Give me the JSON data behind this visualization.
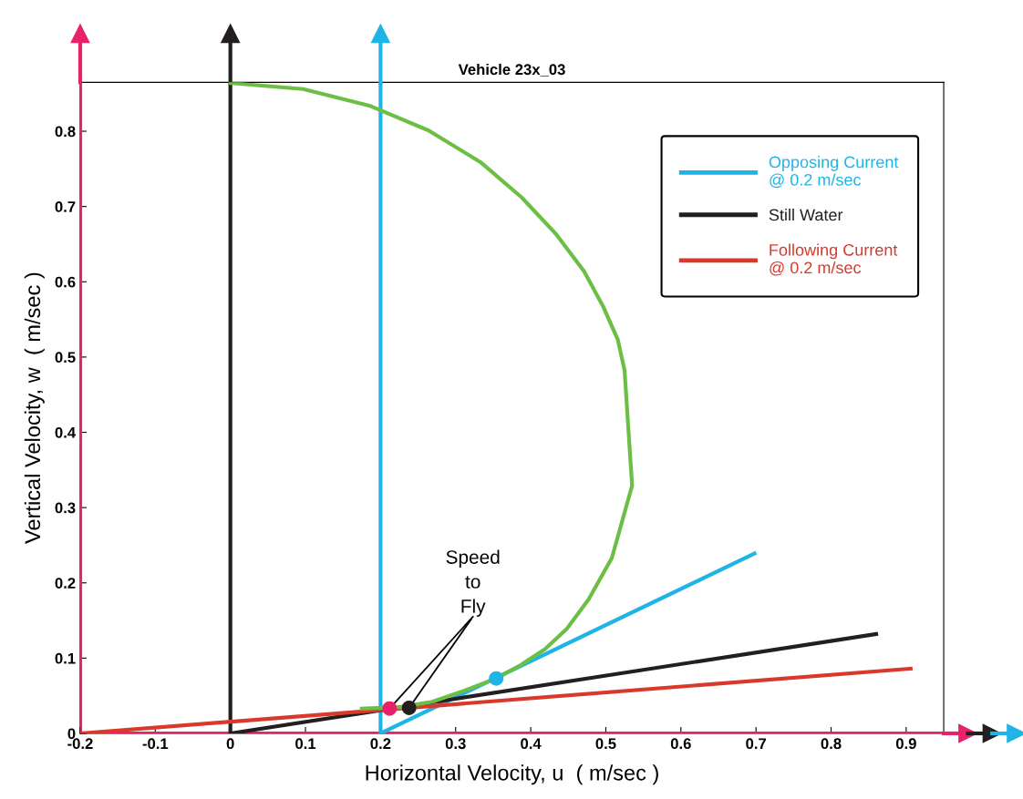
{
  "chart_data": {
    "type": "line",
    "title": "Vehicle 23x_03",
    "xlabel": "Horizontal Velocity, u  ( m/sec )",
    "ylabel": "Vertical Velocity, w  ( m/sec )",
    "xlim": [
      -0.2,
      0.95
    ],
    "ylim": [
      0,
      0.865
    ],
    "xticks": [
      -0.2,
      -0.1,
      0,
      0.1,
      0.2,
      0.3,
      0.4,
      0.5,
      0.6,
      0.7,
      0.8,
      0.9
    ],
    "yticks": [
      0,
      0.1,
      0.2,
      0.3,
      0.4,
      0.5,
      0.6,
      0.7,
      0.8
    ],
    "grid": false,
    "legend": "top right",
    "series": [
      {
        "name": "Opposing Current\n@ 0.2 m/sec",
        "color": "#1eb4e6",
        "x": [
          0.2,
          0.698
        ],
        "values": [
          0,
          0.239
        ]
      },
      {
        "name": "Still Water",
        "color": "#231f20",
        "x": [
          0,
          0.86
        ],
        "values": [
          0,
          0.132
        ]
      },
      {
        "name": "Following Current\n@ 0.2 m/sec",
        "color": "#d9392b",
        "x": [
          -0.2,
          0.906
        ],
        "values": [
          0,
          0.086
        ]
      },
      {
        "color": "#6cbf44",
        "x": [
          0,
          0.097,
          0.185,
          0.264,
          0.333,
          0.388,
          0.434,
          0.471,
          0.496,
          0.516,
          0.525,
          0.535,
          0.508,
          0.477,
          0.448,
          0.419,
          0.387,
          0.354,
          0.312,
          0.269,
          0.227,
          0.175
        ],
        "values": [
          0.864,
          0.856,
          0.834,
          0.801,
          0.759,
          0.712,
          0.663,
          0.614,
          0.568,
          0.523,
          0.482,
          0.329,
          0.233,
          0.178,
          0.139,
          0.112,
          0.091,
          0.073,
          0.057,
          0.042,
          0.035,
          0.033
        ]
      },
      {
        "type": "scatter",
        "marker": "circle",
        "x": [
          0.354,
          0.238,
          0.212
        ],
        "values": [
          0.073,
          0.034,
          0.033
        ],
        "colors": [
          "#1eb4e6",
          "#231f20",
          "#e8226a"
        ]
      }
    ],
    "ref_lines": [
      {
        "axis": "x",
        "value": -0.2,
        "color": "#e8226a"
      },
      {
        "axis": "x",
        "value": 0,
        "color": "#231f20"
      },
      {
        "axis": "x",
        "value": 0.2,
        "color": "#1eb4e6"
      },
      {
        "axis": "y",
        "value": 0,
        "color": "#e8226a"
      }
    ],
    "annotations": [
      {
        "text": "Speed\nto\nFly",
        "x": 0.238,
        "y": 0.034
      }
    ]
  }
}
